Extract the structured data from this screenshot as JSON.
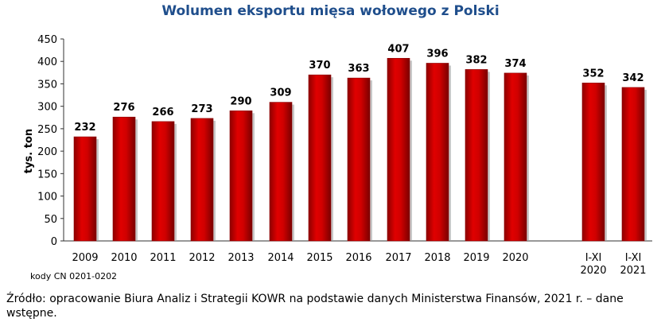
{
  "chart_data": {
    "type": "bar",
    "title": "Wolumen eksportu mięsa wołowego z Polski",
    "ylabel": "tys. ton",
    "xlabel": "",
    "ylim": [
      0,
      450
    ],
    "yticks": [
      0,
      50,
      100,
      150,
      200,
      250,
      300,
      350,
      400,
      450
    ],
    "categories": [
      [
        "2009"
      ],
      [
        "2010"
      ],
      [
        "2011"
      ],
      [
        "2012"
      ],
      [
        "2013"
      ],
      [
        "2014"
      ],
      [
        "2015"
      ],
      [
        "2016"
      ],
      [
        "2017"
      ],
      [
        "2018"
      ],
      [
        "2019"
      ],
      [
        "2020"
      ],
      [
        "I-XI",
        "2020"
      ],
      [
        "I-XI",
        "2021"
      ]
    ],
    "values": [
      232,
      276,
      266,
      273,
      290,
      309,
      370,
      363,
      407,
      396,
      382,
      374,
      352,
      342
    ],
    "data_labels": [
      "232",
      "276",
      "266",
      "273",
      "290",
      "309",
      "370",
      "363",
      "407",
      "396",
      "382",
      "374",
      "352",
      "342"
    ],
    "bar_color": "#cc0000",
    "grid": false,
    "legend": "none"
  },
  "footnote": {
    "codes": "kody CN 0201-0202",
    "source": "Źródło: opracowanie Biura Analiz i Strategii KOWR na podstawie danych Ministerstwa Finansów, 2021 r. – dane wstępne."
  }
}
